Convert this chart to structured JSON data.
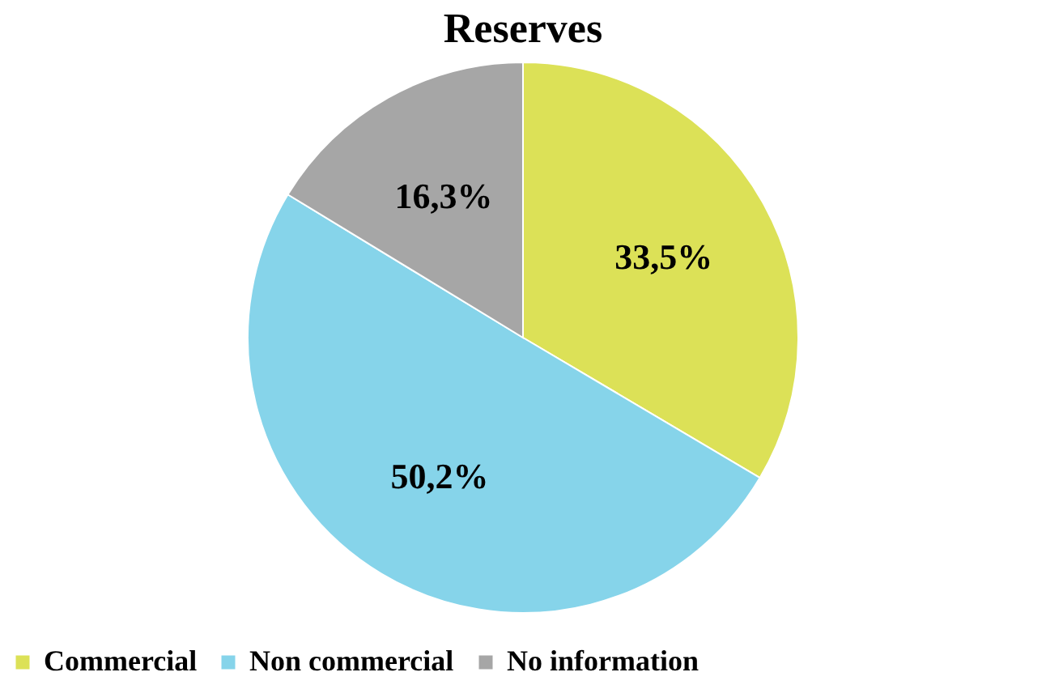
{
  "chart_data": {
    "type": "pie",
    "title": "Reserves",
    "categories": [
      "Commercial",
      "Non commercial",
      "No information"
    ],
    "values": [
      33.5,
      50.2,
      16.3
    ],
    "value_labels": [
      "33,5%",
      "50,2%",
      "16,3%"
    ],
    "colors": [
      "#dce157",
      "#86d4ea",
      "#a6a6a6"
    ],
    "legend": "bottom"
  }
}
